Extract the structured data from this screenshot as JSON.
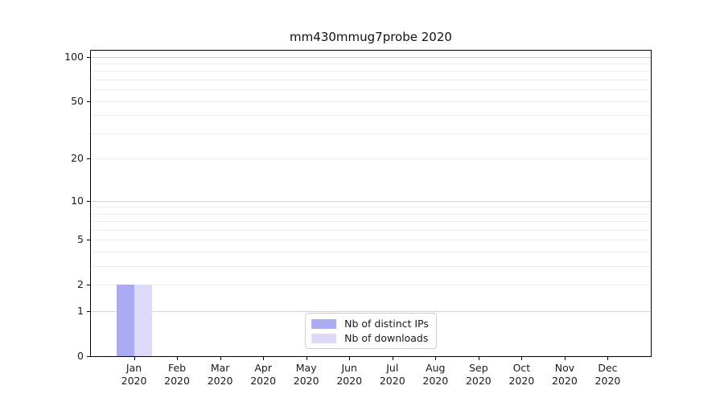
{
  "chart_data": {
    "type": "bar",
    "title": "mm430mmug7probe 2020",
    "scale": "log1p",
    "months": [
      "Jan",
      "Feb",
      "Mar",
      "Apr",
      "May",
      "Jun",
      "Jul",
      "Aug",
      "Sep",
      "Oct",
      "Nov",
      "Dec"
    ],
    "year": "2020",
    "series": [
      {
        "name": "Nb of distinct IPs",
        "color": "#ababf3",
        "values": [
          2,
          0,
          0,
          0,
          0,
          0,
          0,
          0,
          0,
          0,
          0,
          0
        ]
      },
      {
        "name": "Nb of downloads",
        "color": "#dbdbf9",
        "values": [
          2,
          0,
          0,
          0,
          0,
          0,
          0,
          0,
          0,
          0,
          0,
          0
        ]
      }
    ],
    "yticks": [
      0,
      1,
      2,
      5,
      10,
      20,
      50,
      100
    ],
    "ylim": [
      0,
      110
    ],
    "grid": {
      "major_color": "#d3d3d3",
      "minor_color": "#ededed",
      "major_values": [
        1,
        10,
        100
      ]
    },
    "legend_position": "lower center"
  }
}
